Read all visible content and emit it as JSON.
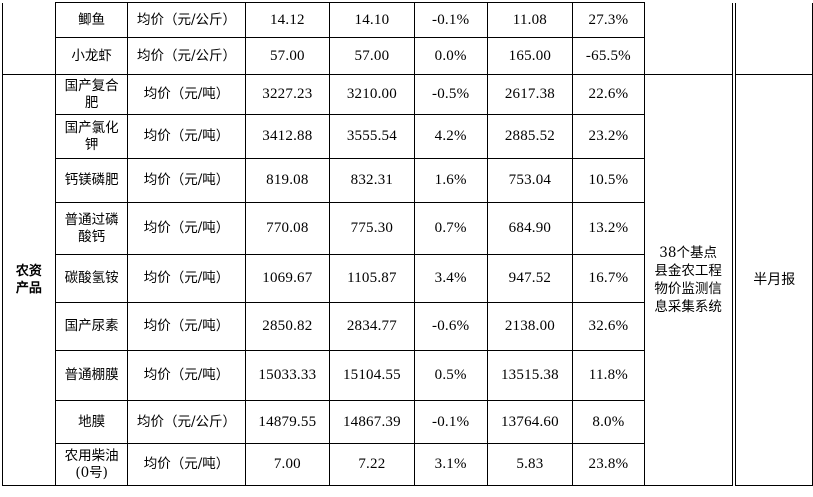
{
  "top_rows": [
    {
      "name": "鲫鱼",
      "unit": "均价（元/公斤）",
      "v1": "14.12",
      "v2": "14.10",
      "chg": "-0.1%",
      "v3": "11.08",
      "yoy": "27.3%"
    },
    {
      "name": "小龙虾",
      "unit": "均价（元/公斤）",
      "v1": "57.00",
      "v2": "57.00",
      "chg": "0.0%",
      "v3": "165.00",
      "yoy": "-65.5%"
    }
  ],
  "category": "农资产品",
  "source": "38个基点县金农工程物价监测信息采集系统",
  "frequency": "半月报",
  "rows": [
    {
      "name": "国产复合肥",
      "unit": "均价（元/吨）",
      "v1": "3227.23",
      "v2": "3210.00",
      "chg": "-0.5%",
      "v3": "2617.38",
      "yoy": "22.6%"
    },
    {
      "name": "国产氯化钾",
      "unit": "均价（元/吨）",
      "v1": "3412.88",
      "v2": "3555.54",
      "chg": "4.2%",
      "v3": "2885.52",
      "yoy": "23.2%"
    },
    {
      "name": "钙镁磷肥",
      "unit": "均价（元/吨）",
      "v1": "819.08",
      "v2": "832.31",
      "chg": "1.6%",
      "v3": "753.04",
      "yoy": "10.5%"
    },
    {
      "name": "普通过磷酸钙",
      "unit": "均价（元/吨）",
      "v1": "770.08",
      "v2": "775.30",
      "chg": "0.7%",
      "v3": "684.90",
      "yoy": "13.2%"
    },
    {
      "name": "碳酸氢铵",
      "unit": "均价（元/吨）",
      "v1": "1069.67",
      "v2": "1105.87",
      "chg": "3.4%",
      "v3": "947.52",
      "yoy": "16.7%"
    },
    {
      "name": "国产尿素",
      "unit": "均价（元/吨）",
      "v1": "2850.82",
      "v2": "2834.77",
      "chg": "-0.6%",
      "v3": "2138.00",
      "yoy": "32.6%"
    },
    {
      "name": "普通棚膜",
      "unit": "均价（元/吨）",
      "v1": "15033.33",
      "v2": "15104.55",
      "chg": "0.5%",
      "v3": "13515.38",
      "yoy": "11.8%"
    },
    {
      "name": "地膜",
      "unit": "均价（元/公斤）",
      "v1": "14879.55",
      "v2": "14867.39",
      "chg": "-0.1%",
      "v3": "13764.60",
      "yoy": "8.0%"
    },
    {
      "name": "农用柴油(0号)",
      "unit": "均价（元/吨）",
      "v1": "7.00",
      "v2": "7.22",
      "chg": "3.1%",
      "v3": "5.83",
      "yoy": "23.8%"
    }
  ]
}
